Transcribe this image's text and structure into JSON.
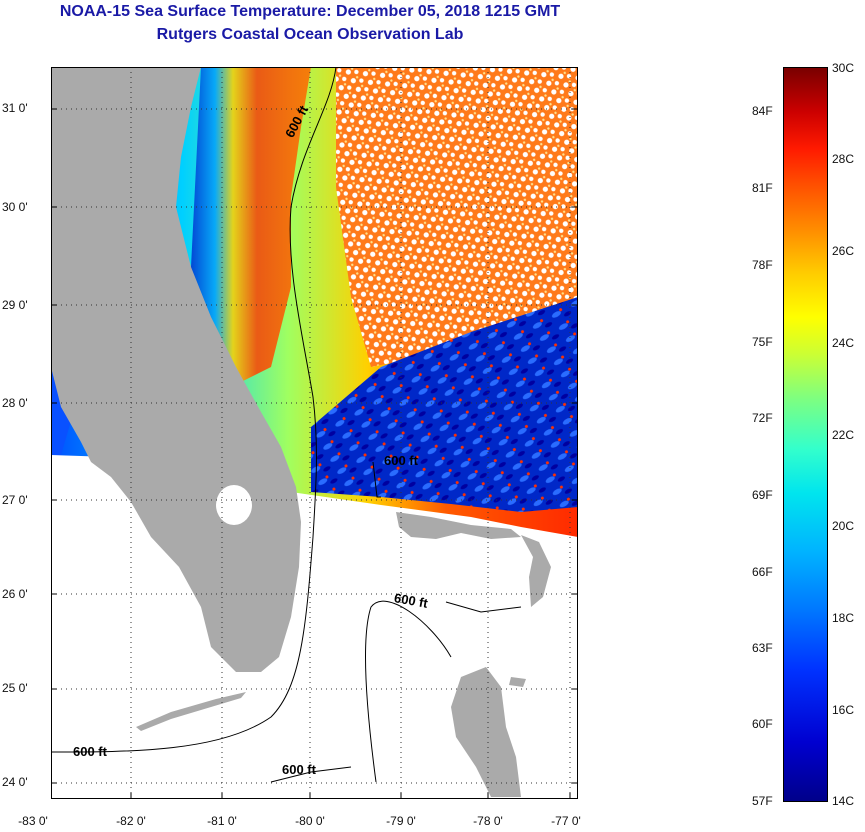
{
  "title": {
    "line1": "NOAA-15 Sea Surface Temperature:  December 05, 2018 1215 GMT",
    "line2": "Rutgers Coastal Ocean Observation Lab"
  },
  "colors": {
    "title": "#1a1aa6",
    "land": "#aaaaaa",
    "clouds": "#ffffff",
    "contour": "#000000"
  },
  "map": {
    "latitude_labels": [
      "31 0'",
      "30 0'",
      "29 0'",
      "28 0'",
      "27 0'",
      "26 0'",
      "25 0'",
      "24 0'"
    ],
    "longitude_labels": [
      "-83 0'",
      "-82 0'",
      "-81 0'",
      "-80 0'",
      "-79 0'",
      "-78 0'",
      "-77 0'"
    ],
    "contour_labels": [
      "600 ft",
      "600 ft",
      "600 ft",
      "600 ft",
      "600 ft"
    ]
  },
  "colorbar": {
    "fahrenheit": [
      "84F",
      "81F",
      "78F",
      "75F",
      "72F",
      "69F",
      "66F",
      "63F",
      "60F",
      "57F"
    ],
    "celsius": [
      "30C",
      "28C",
      "26C",
      "24C",
      "22C",
      "20C",
      "18C",
      "16C",
      "14C"
    ],
    "range_c": [
      14,
      30
    ]
  }
}
